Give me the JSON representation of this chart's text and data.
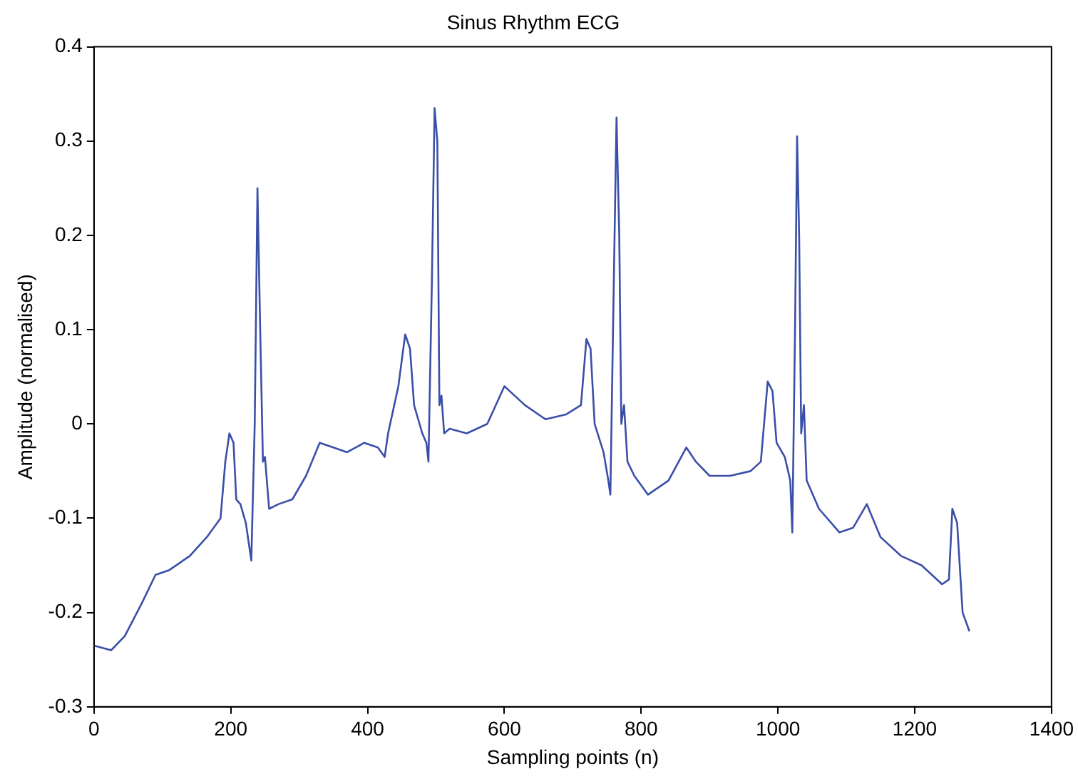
{
  "chart_data": {
    "type": "line",
    "title": "Sinus Rhythm ECG",
    "xlabel": "Sampling points (n)",
    "ylabel": "Amplitude (normalised)",
    "xlim": [
      0,
      1400
    ],
    "xticks": [
      0,
      200,
      400,
      600,
      800,
      1000,
      1200,
      1400
    ],
    "ylim": [
      -0.3,
      0.4
    ],
    "yticks": [
      -0.3,
      -0.2,
      -0.1,
      0,
      0.1,
      0.2,
      0.3,
      0.4
    ],
    "grid": false,
    "legend": false,
    "marker": "none",
    "line_style": "solid",
    "series": [
      {
        "color": "#3a4fa8",
        "x": [
          0,
          25,
          45,
          70,
          90,
          110,
          140,
          165,
          185,
          192,
          198,
          204,
          208,
          214,
          222,
          230,
          235,
          239,
          243,
          247,
          250,
          256,
          270,
          290,
          310,
          330,
          350,
          370,
          395,
          415,
          425,
          430,
          445,
          455,
          462,
          468,
          480,
          486,
          489,
          494,
          498,
          502,
          505,
          508,
          512,
          520,
          545,
          575,
          600,
          630,
          660,
          690,
          712,
          720,
          726,
          732,
          745,
          752,
          755,
          760,
          764,
          768,
          771,
          775,
          780,
          790,
          810,
          840,
          866,
          880,
          900,
          930,
          960,
          975,
          985,
          992,
          998,
          1010,
          1018,
          1021,
          1025,
          1028,
          1031,
          1034,
          1038,
          1042,
          1060,
          1090,
          1110,
          1130,
          1150,
          1180,
          1210,
          1240,
          1250,
          1255,
          1262,
          1270,
          1280
        ],
        "values": [
          -0.235,
          -0.24,
          -0.225,
          -0.19,
          -0.16,
          -0.155,
          -0.14,
          -0.12,
          -0.1,
          -0.04,
          -0.01,
          -0.02,
          -0.08,
          -0.085,
          -0.105,
          -0.145,
          0.0,
          0.25,
          0.1,
          -0.04,
          -0.035,
          -0.09,
          -0.085,
          -0.08,
          -0.055,
          -0.02,
          -0.025,
          -0.03,
          -0.02,
          -0.025,
          -0.035,
          -0.01,
          0.04,
          0.095,
          0.08,
          0.02,
          -0.01,
          -0.02,
          -0.04,
          0.15,
          0.335,
          0.3,
          0.02,
          0.03,
          -0.01,
          -0.005,
          -0.01,
          0.0,
          0.04,
          0.02,
          0.005,
          0.01,
          0.02,
          0.09,
          0.08,
          0.0,
          -0.03,
          -0.06,
          -0.075,
          0.15,
          0.325,
          0.2,
          0.0,
          0.02,
          -0.04,
          -0.055,
          -0.075,
          -0.06,
          -0.025,
          -0.04,
          -0.055,
          -0.055,
          -0.05,
          -0.04,
          0.045,
          0.035,
          -0.02,
          -0.035,
          -0.06,
          -0.115,
          0.1,
          0.305,
          0.2,
          -0.01,
          0.02,
          -0.06,
          -0.09,
          -0.115,
          -0.11,
          -0.085,
          -0.12,
          -0.14,
          -0.15,
          -0.17,
          -0.165,
          -0.09,
          -0.105,
          -0.2,
          -0.22
        ]
      }
    ]
  }
}
